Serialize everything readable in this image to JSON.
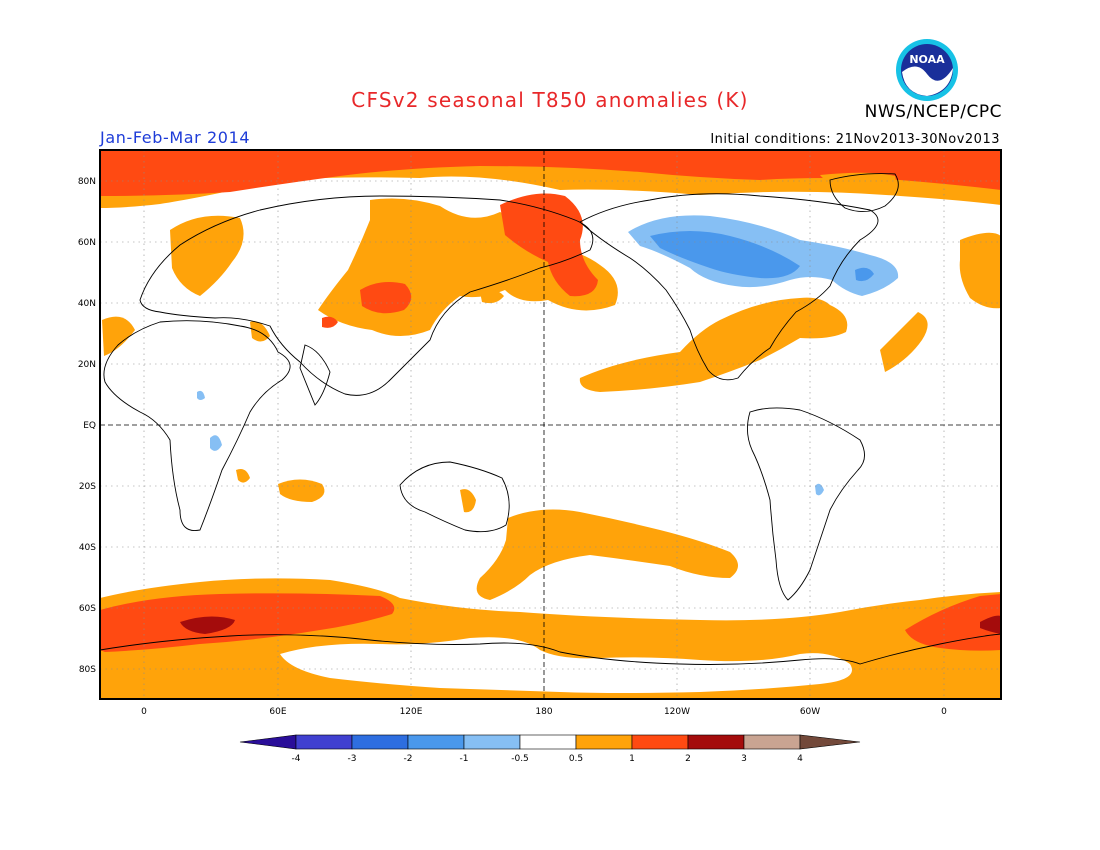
{
  "title": "CFSv2 seasonal T850 anomalies (K)",
  "period": "Jan-Feb-Mar 2014",
  "agency": "NWS/NCEP/CPC",
  "initial_conditions": "Initial conditions: 21Nov2013-30Nov2013",
  "logo": {
    "text": "NOAA"
  },
  "lat_labels": [
    "80N",
    "60N",
    "40N",
    "20N",
    "EQ",
    "20S",
    "40S",
    "60S",
    "80S"
  ],
  "lon_labels": [
    "0",
    "60E",
    "120E",
    "180",
    "120W",
    "60W",
    "0"
  ],
  "colorbar": {
    "labels": [
      "-4",
      "-3",
      "-2",
      "-1",
      "-0.5",
      "0.5",
      "1",
      "2",
      "3",
      "4"
    ],
    "colors": [
      "#2a0e99",
      "#4040d0",
      "#2e6ee0",
      "#4a98ec",
      "#86bff4",
      "#ffffff",
      "#ffa30a",
      "#ff4a12",
      "#a40c0c",
      "#c9a492",
      "#73493a"
    ]
  },
  "anomaly_colors": {
    "warm1": "#ffa30a",
    "warm2": "#ff4a12",
    "warm3": "#a40c0c",
    "cold1": "#86bff4",
    "cold2": "#4a98ec",
    "cold3": "#2e6ee0"
  }
}
